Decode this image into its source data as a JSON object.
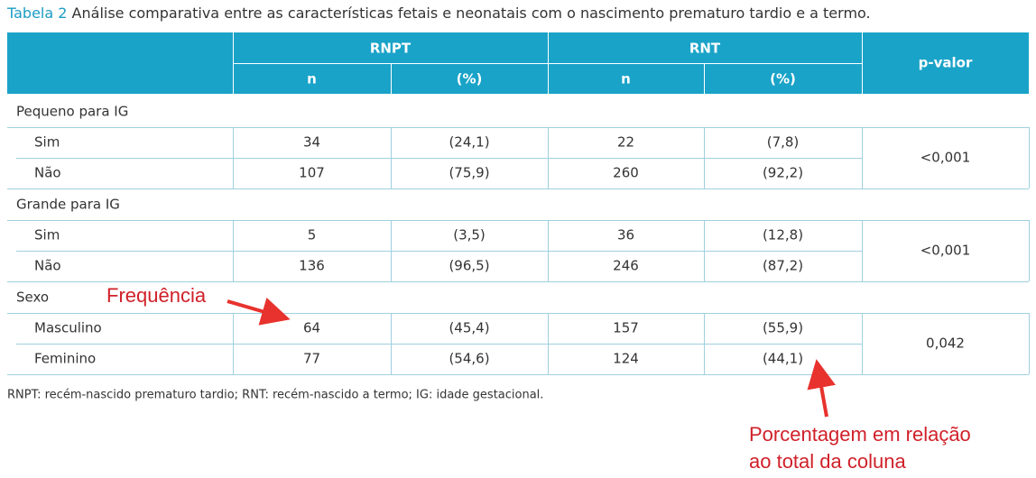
{
  "title": {
    "label": "Tabela 2",
    "text": "Análise comparativa entre as características fetais e neonatais com o nascimento prematuro tardio e a termo."
  },
  "table": {
    "groups": [
      "RNPT",
      "RNT"
    ],
    "subheaders": [
      "n",
      "(%)",
      "n",
      "(%)"
    ],
    "p_header": "p-valor",
    "sections": [
      {
        "label": "Pequeno para IG",
        "p_value": "<0,001",
        "rows": [
          [
            "Sim",
            "34",
            "(24,1)",
            "22",
            "(7,8)"
          ],
          [
            "Não",
            "107",
            "(75,9)",
            "260",
            "(92,2)"
          ]
        ]
      },
      {
        "label": "Grande para IG",
        "p_value": "<0,001",
        "rows": [
          [
            "Sim",
            "5",
            "(3,5)",
            "36",
            "(12,8)"
          ],
          [
            "Não",
            "136",
            "(96,5)",
            "246",
            "(87,2)"
          ]
        ]
      },
      {
        "label": "Sexo",
        "p_value": "0,042",
        "rows": [
          [
            "Masculino",
            "64",
            "(45,4)",
            "157",
            "(55,9)"
          ],
          [
            "Feminino",
            "77",
            "(54,6)",
            "124",
            "(44,1)"
          ]
        ]
      }
    ]
  },
  "footnote": "RNPT: recém-nascido prematuro tardio; RNT: recém-nascido a termo; IG: idade gestacional.",
  "annotations": {
    "frequency": "Frequência",
    "percentage": [
      "Porcentagem em relação",
      "ao total da coluna"
    ]
  }
}
